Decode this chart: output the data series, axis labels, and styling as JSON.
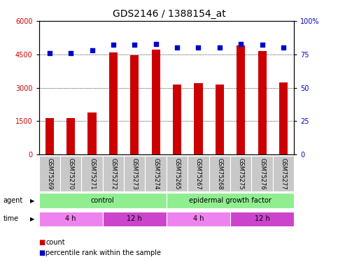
{
  "title": "GDS2146 / 1388154_at",
  "samples": [
    "GSM75269",
    "GSM75270",
    "GSM75271",
    "GSM75272",
    "GSM75273",
    "GSM75274",
    "GSM75265",
    "GSM75267",
    "GSM75268",
    "GSM75275",
    "GSM75276",
    "GSM75277"
  ],
  "bar_values": [
    1650,
    1650,
    1900,
    4600,
    4450,
    4700,
    3150,
    3200,
    3150,
    4900,
    4650,
    3250
  ],
  "percentile_values": [
    76,
    76,
    78,
    82,
    82,
    83,
    80,
    80,
    80,
    83,
    82,
    80
  ],
  "bar_color": "#cc0000",
  "dot_color": "#0000cc",
  "ylim_left": [
    0,
    6000
  ],
  "ylim_right": [
    0,
    100
  ],
  "yticks_left": [
    0,
    1500,
    3000,
    4500,
    6000
  ],
  "yticks_right": [
    0,
    25,
    50,
    75,
    100
  ],
  "ytick_labels_left": [
    "0",
    "1500",
    "3000",
    "4500",
    "6000"
  ],
  "ytick_labels_right": [
    "0",
    "25",
    "50",
    "75",
    "100%"
  ],
  "agent_labels": [
    {
      "text": "control",
      "start": 0,
      "end": 6,
      "color": "#90ee90"
    },
    {
      "text": "epidermal growth factor",
      "start": 6,
      "end": 12,
      "color": "#90ee90"
    }
  ],
  "time_labels": [
    {
      "text": "4 h",
      "start": 0,
      "end": 3,
      "color": "#ee82ee"
    },
    {
      "text": "12 h",
      "start": 3,
      "end": 6,
      "color": "#cc44cc"
    },
    {
      "text": "4 h",
      "start": 6,
      "end": 9,
      "color": "#ee82ee"
    },
    {
      "text": "12 h",
      "start": 9,
      "end": 12,
      "color": "#cc44cc"
    }
  ],
  "sample_bg_color": "#c8c8c8",
  "title_fontsize": 10,
  "tick_fontsize": 7,
  "sample_fontsize": 6,
  "label_fontsize": 7,
  "legend_fontsize": 7,
  "bar_width": 0.4
}
